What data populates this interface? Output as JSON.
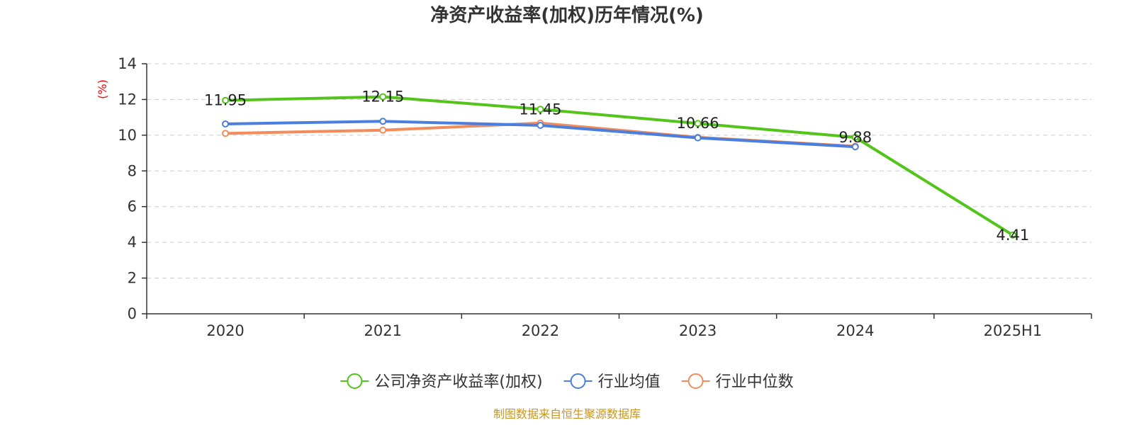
{
  "chart_data": {
    "type": "line",
    "title": "净资产收益率(加权)历年情况(%)",
    "ylabel": "(%)",
    "xlabel": "",
    "categories": [
      "2020",
      "2021",
      "2022",
      "2023",
      "2024",
      "2025H1"
    ],
    "ylim": [
      0,
      14
    ],
    "yticks": [
      0,
      2,
      4,
      6,
      8,
      10,
      12,
      14
    ],
    "grid": true,
    "legend_position": "bottom",
    "series": [
      {
        "name": "公司净资产收益率(加权)",
        "values": [
          11.95,
          12.15,
          11.45,
          10.66,
          9.88,
          4.41
        ],
        "labels": [
          "11.95",
          "12.15",
          "11.45",
          "10.66",
          "9.88",
          "4.41"
        ],
        "color": "#52c41a"
      },
      {
        "name": "行业均值",
        "values": [
          10.63,
          10.78,
          10.55,
          9.85,
          9.35,
          null
        ],
        "color": "#4a7fe0"
      },
      {
        "name": "行业中位数",
        "values": [
          10.1,
          10.28,
          10.68,
          9.88,
          9.38,
          null
        ],
        "color": "#f28c5a"
      }
    ],
    "source": "制图数据来自恒生聚源数据库",
    "colors": {
      "axis": "#333333",
      "grid": "#cccccc",
      "unit": "#ff0000",
      "source": "#c8961e"
    }
  }
}
